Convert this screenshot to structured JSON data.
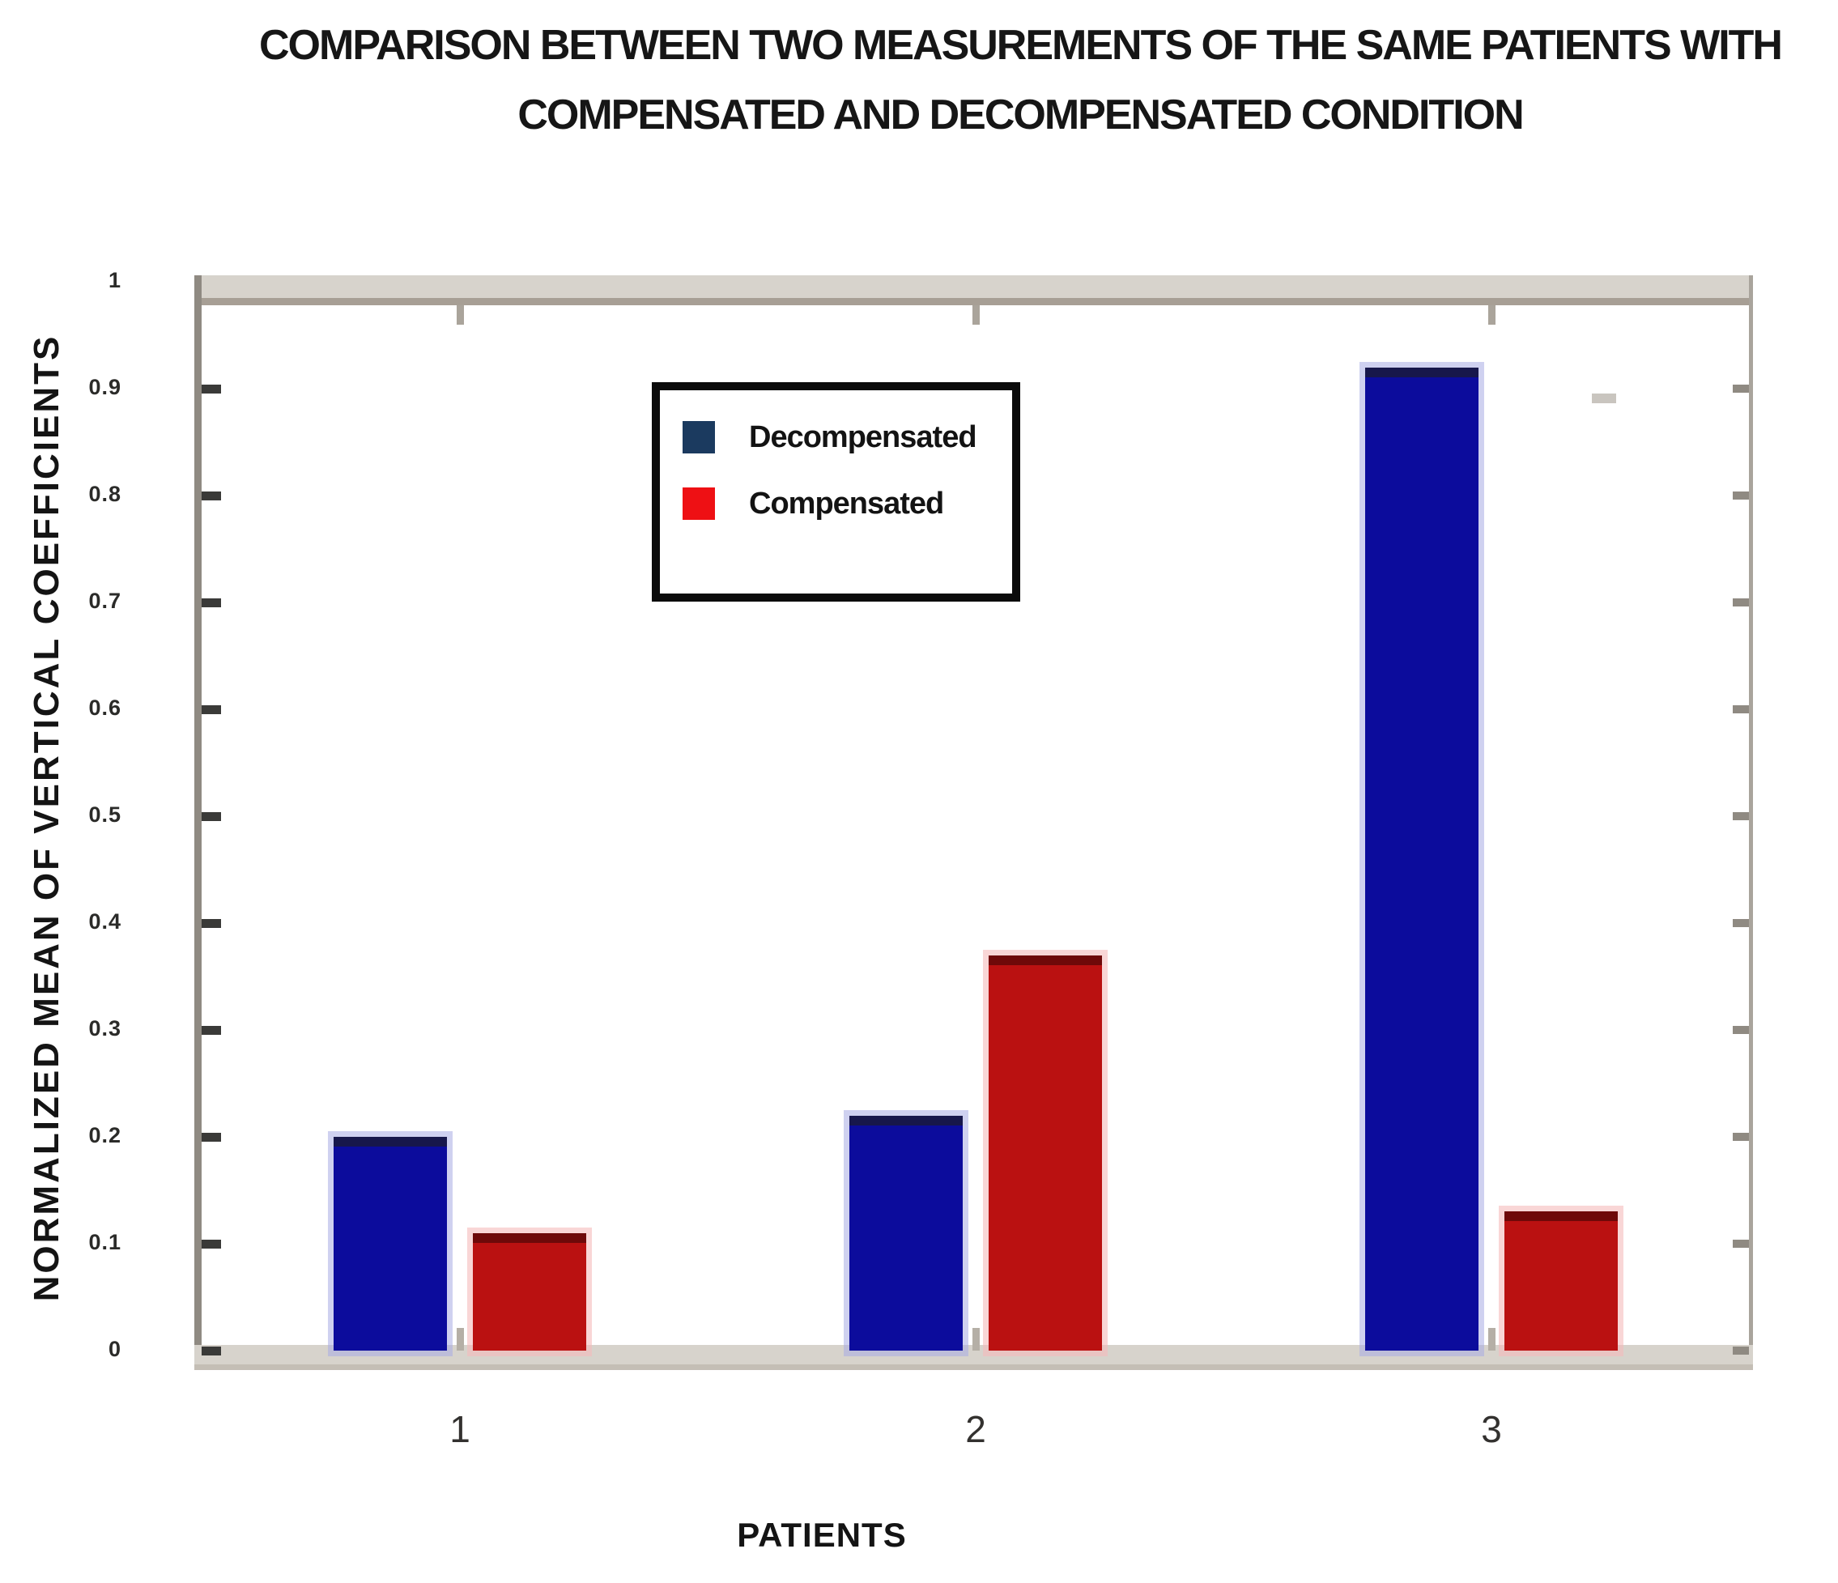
{
  "title": {
    "line1": "COMPARISON BETWEEN TWO MEASUREMENTS OF THE SAME PATIENTS WITH",
    "line2": "COMPENSATED AND DECOMPENSATED CONDITION"
  },
  "chart_data": {
    "type": "bar",
    "title": "COMPARISON BETWEEN TWO MEASUREMENTS OF THE SAME PATIENTS WITH COMPENSATED AND DECOMPENSATED CONDITION",
    "categories": [
      "1",
      "2",
      "3"
    ],
    "series": [
      {
        "name": "Decompensated",
        "values": [
          0.2,
          0.22,
          0.92
        ],
        "color": "#0C0C9C",
        "legend_color": "#1B3A5F"
      },
      {
        "name": "Compensated",
        "values": [
          0.11,
          0.37,
          0.13
        ],
        "color": "#BA1111",
        "legend_color": "#EE1014"
      }
    ],
    "xlabel": "PATIENTS",
    "ylabel": "NORMALIZED MEAN OF VERTICAL COEFFICIENTS",
    "ylim": [
      0,
      1
    ],
    "yticks": [
      0,
      0.1,
      0.2,
      0.3,
      0.4,
      0.5,
      0.6,
      0.7,
      0.8,
      0.9,
      1
    ],
    "ytick_labels": [
      "0",
      "0.1",
      "0.2",
      "0.3",
      "0.4",
      "0.5",
      "0.6",
      "0.7",
      "0.8",
      "0.9",
      "1"
    ],
    "legend_position": "upper center-left inside plot",
    "grid": false
  }
}
